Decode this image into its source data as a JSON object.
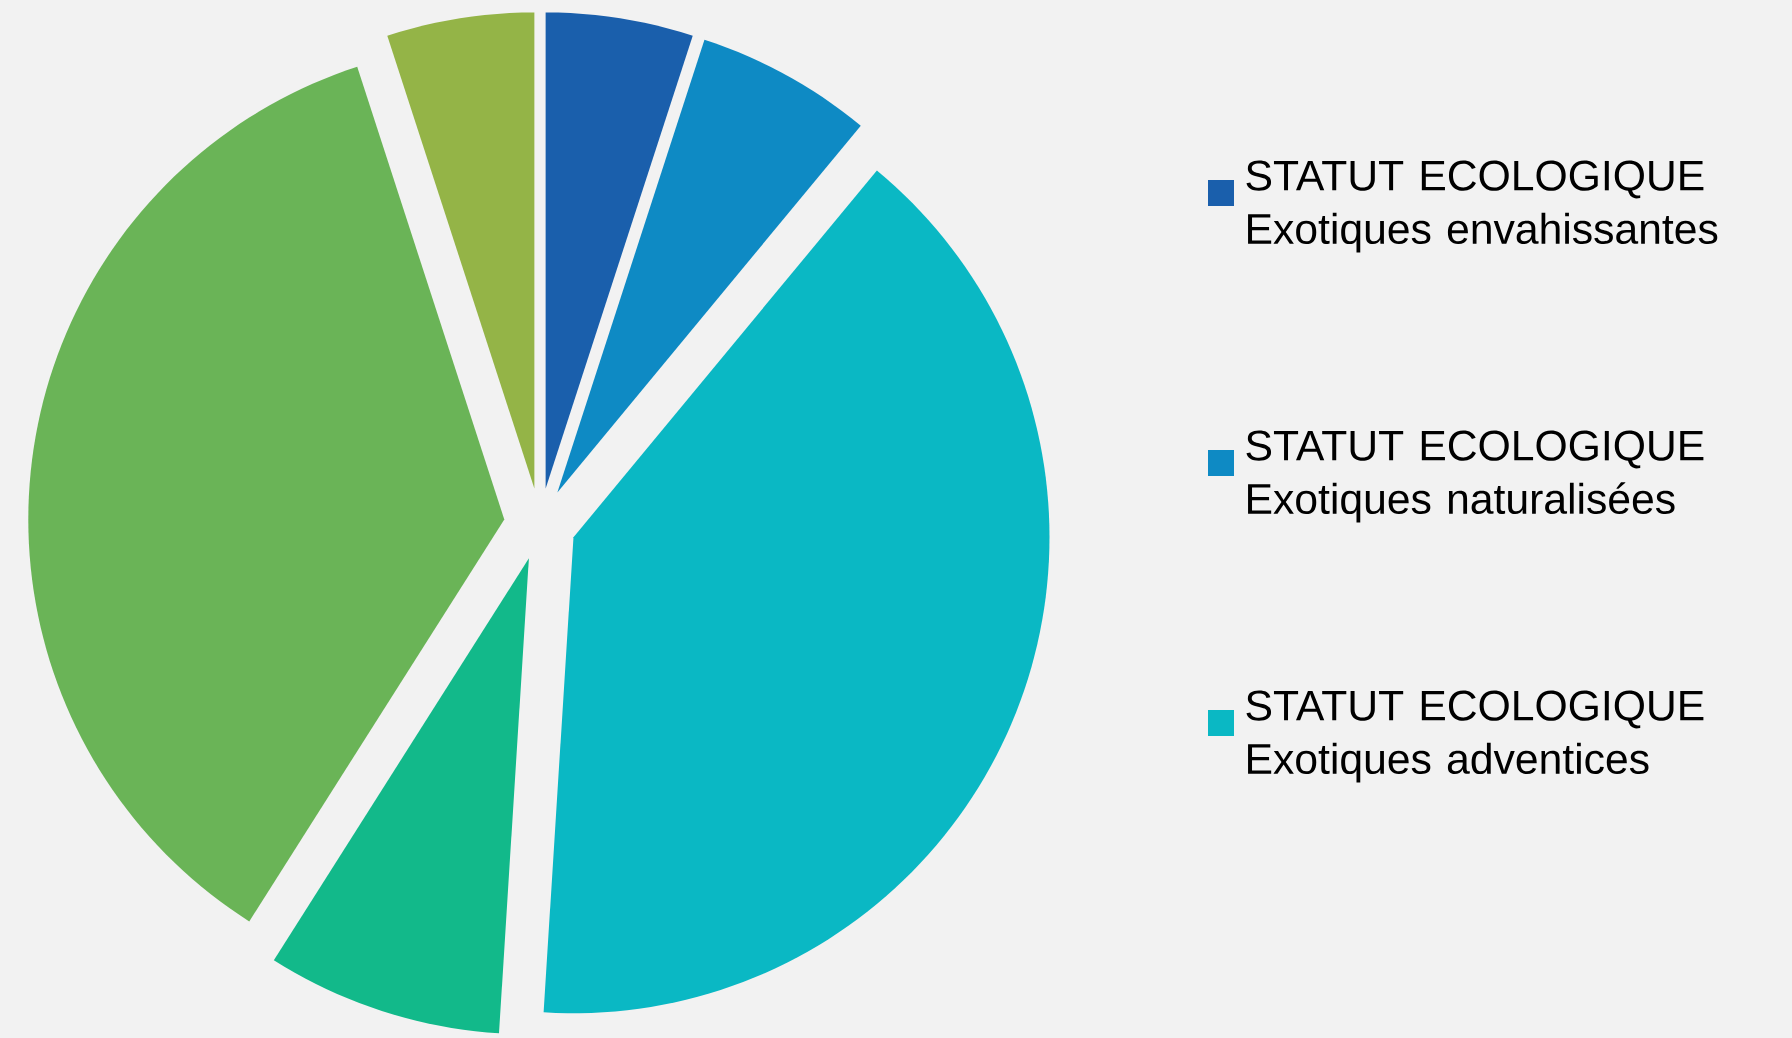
{
  "chart_data": {
    "type": "pie",
    "categories": [
      "STATUT ECOLOGIQUE Exotiques envahissantes",
      "STATUT ECOLOGIQUE Exotiques naturalisées",
      "STATUT ECOLOGIQUE Exotiques adventices",
      null,
      null,
      null
    ],
    "values": [
      5,
      6,
      40,
      8,
      36,
      5
    ],
    "colors": [
      "#1a5fac",
      "#0e8ac4",
      "#0ab8c4",
      "#12b98a",
      "#6ab457",
      "#94b447"
    ],
    "legend": "right"
  }
}
